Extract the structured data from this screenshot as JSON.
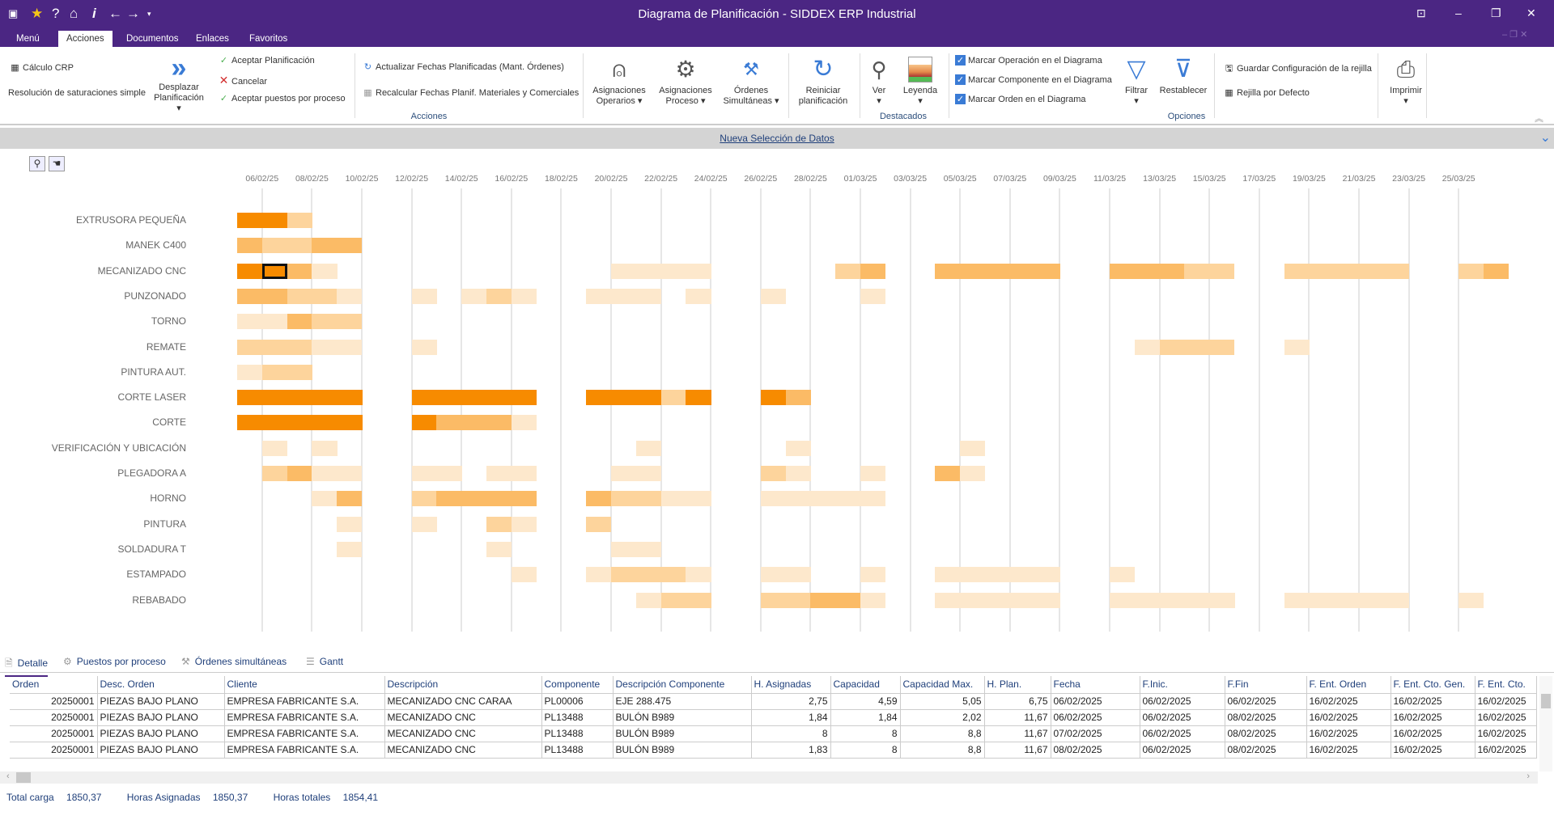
{
  "window": {
    "title": "Diagrama de  Planificación - SIDDEX ERP Industrial"
  },
  "colors": {
    "purple": "#4b2683",
    "level1": "#fde8cc",
    "level2": "#fdd49c",
    "level3": "#fbbb66",
    "level4": "#f78b00"
  },
  "menu_tabs": [
    {
      "label": "Menú"
    },
    {
      "label": "Acciones"
    },
    {
      "label": "Documentos"
    },
    {
      "label": "Enlaces"
    },
    {
      "label": "Favoritos"
    }
  ],
  "ribbon": {
    "calculo_crp": "Cálculo CRP",
    "resolucion": "Resolución de saturaciones simple",
    "desplazar": [
      "Desplazar",
      "Planificación ▾"
    ],
    "aceptar": "Aceptar Planificación",
    "cancelar": "Cancelar",
    "aceptar_puestos": "Aceptar puestos por proceso",
    "actualizar": "Actualizar Fechas Planificadas (Mant. Órdenes)",
    "recalcular": "Recalcular Fechas Planif. Materiales y Comerciales",
    "asig_operarios": [
      "Asignaciones",
      "Operarios ▾"
    ],
    "asig_proceso": [
      "Asignaciones",
      "Proceso ▾"
    ],
    "ordenes_sim": [
      "Órdenes",
      "Simultáneas ▾"
    ],
    "reiniciar": [
      "Reiniciar",
      "planificación"
    ],
    "ver": "Ver",
    "leyenda": "Leyenda",
    "marcar_op": "Marcar Operación en el Diagrama",
    "marcar_comp": "Marcar Componente en el Diagrama",
    "marcar_orden": "Marcar Orden en el Diagrama",
    "filtrar": "Filtrar",
    "restablecer": "Restablecer",
    "guardar": "Guardar Configuración de la rejilla",
    "rejilla": "Rejilla por Defecto",
    "imprimir": "Imprimir",
    "groups": {
      "acciones": "Acciones",
      "destacados": "Destacados",
      "opciones": "Opciones"
    }
  },
  "selection_bar": "Nueva Selección de Datos",
  "gantt": {
    "date_labels": [
      "06/02/25",
      "08/02/25",
      "10/02/25",
      "12/02/25",
      "14/02/25",
      "16/02/25",
      "18/02/25",
      "20/02/25",
      "22/02/25",
      "24/02/25",
      "26/02/25",
      "28/02/25",
      "01/03/25",
      "03/03/25",
      "05/03/25",
      "07/03/25",
      "09/03/25",
      "11/03/25",
      "13/03/25",
      "15/03/25",
      "17/03/25",
      "19/03/25",
      "21/03/25",
      "23/03/25",
      "25/03/25"
    ],
    "rows": [
      {
        "name": "EXTRUSORA PEQUEÑA",
        "segments": [
          [
            0,
            2,
            4
          ],
          [
            2,
            1,
            2
          ]
        ]
      },
      {
        "name": "MANEK C400",
        "segments": [
          [
            0,
            1,
            3
          ],
          [
            1,
            2,
            2
          ],
          [
            3,
            2,
            3
          ]
        ]
      },
      {
        "name": "MECANIZADO CNC",
        "segments": [
          [
            0,
            1,
            4
          ],
          [
            1,
            1,
            4,
            1
          ],
          [
            2,
            1,
            3
          ],
          [
            3,
            1,
            1
          ],
          [
            15,
            4,
            1
          ],
          [
            24,
            1,
            2
          ],
          [
            25,
            1,
            3
          ],
          [
            28,
            5,
            3
          ],
          [
            35,
            3,
            3
          ],
          [
            38,
            2,
            2
          ],
          [
            42,
            5,
            2
          ],
          [
            49,
            1,
            2
          ],
          [
            50,
            1,
            3
          ]
        ]
      },
      {
        "name": "PUNZONADO",
        "segments": [
          [
            0,
            2,
            3
          ],
          [
            2,
            2,
            2
          ],
          [
            4,
            1,
            1
          ],
          [
            7,
            1,
            1
          ],
          [
            9,
            1,
            1
          ],
          [
            10,
            1,
            2
          ],
          [
            11,
            1,
            1
          ],
          [
            14,
            3,
            1
          ],
          [
            18,
            1,
            1
          ],
          [
            21,
            1,
            1
          ],
          [
            25,
            1,
            1
          ]
        ]
      },
      {
        "name": "TORNO",
        "segments": [
          [
            0,
            2,
            1
          ],
          [
            2,
            1,
            3
          ],
          [
            3,
            2,
            2
          ]
        ]
      },
      {
        "name": "REMATE",
        "segments": [
          [
            0,
            3,
            2
          ],
          [
            3,
            2,
            1
          ],
          [
            7,
            1,
            1
          ],
          [
            36,
            1,
            1
          ],
          [
            37,
            3,
            2
          ],
          [
            42,
            1,
            1
          ]
        ]
      },
      {
        "name": "PINTURA AUT.",
        "segments": [
          [
            0,
            1,
            1
          ],
          [
            1,
            2,
            2
          ]
        ]
      },
      {
        "name": "CORTE LASER",
        "segments": [
          [
            0,
            5,
            4
          ],
          [
            7,
            5,
            4
          ],
          [
            14,
            3,
            4
          ],
          [
            17,
            1,
            2
          ],
          [
            18,
            1,
            4
          ],
          [
            21,
            1,
            4
          ],
          [
            22,
            1,
            3
          ]
        ]
      },
      {
        "name": "CORTE",
        "segments": [
          [
            0,
            5,
            4
          ],
          [
            7,
            1,
            4
          ],
          [
            8,
            3,
            3
          ],
          [
            11,
            1,
            1
          ]
        ]
      },
      {
        "name": "VERIFICACIÓN Y UBICACIÓN",
        "segments": [
          [
            1,
            1,
            1
          ],
          [
            3,
            1,
            1
          ],
          [
            16,
            1,
            1
          ],
          [
            22,
            1,
            1
          ],
          [
            29,
            1,
            1
          ]
        ]
      },
      {
        "name": "PLEGADORA  A",
        "segments": [
          [
            1,
            1,
            2
          ],
          [
            2,
            1,
            3
          ],
          [
            3,
            2,
            1
          ],
          [
            7,
            2,
            1
          ],
          [
            10,
            2,
            1
          ],
          [
            15,
            2,
            1
          ],
          [
            21,
            1,
            2
          ],
          [
            22,
            1,
            1
          ],
          [
            25,
            1,
            1
          ],
          [
            28,
            1,
            3
          ],
          [
            29,
            1,
            1
          ]
        ]
      },
      {
        "name": "HORNO",
        "segments": [
          [
            3,
            1,
            1
          ],
          [
            4,
            1,
            3
          ],
          [
            7,
            1,
            2
          ],
          [
            8,
            4,
            3
          ],
          [
            14,
            1,
            3
          ],
          [
            15,
            2,
            2
          ],
          [
            17,
            2,
            1
          ],
          [
            21,
            5,
            1
          ]
        ]
      },
      {
        "name": "PINTURA",
        "segments": [
          [
            4,
            1,
            1
          ],
          [
            7,
            1,
            1
          ],
          [
            10,
            1,
            2
          ],
          [
            11,
            1,
            1
          ],
          [
            14,
            1,
            2
          ]
        ]
      },
      {
        "name": "SOLDADURA T",
        "segments": [
          [
            4,
            1,
            1
          ],
          [
            10,
            1,
            1
          ],
          [
            15,
            2,
            1
          ]
        ]
      },
      {
        "name": "ESTAMPADO",
        "segments": [
          [
            11,
            1,
            1
          ],
          [
            14,
            1,
            1
          ],
          [
            15,
            3,
            2
          ],
          [
            18,
            1,
            1
          ],
          [
            21,
            2,
            1
          ],
          [
            25,
            1,
            1
          ],
          [
            28,
            5,
            1
          ],
          [
            35,
            1,
            1
          ]
        ]
      },
      {
        "name": "REBABADO",
        "segments": [
          [
            16,
            1,
            1
          ],
          [
            17,
            2,
            2
          ],
          [
            21,
            2,
            2
          ],
          [
            23,
            2,
            3
          ],
          [
            25,
            1,
            1
          ],
          [
            28,
            5,
            1
          ],
          [
            35,
            5,
            1
          ],
          [
            42,
            5,
            1
          ],
          [
            49,
            1,
            1
          ]
        ]
      }
    ]
  },
  "bottom_tabs": [
    {
      "label": "Detalle"
    },
    {
      "label": "Puestos por proceso"
    },
    {
      "label": "Órdenes simultáneas"
    },
    {
      "label": "Gantt"
    }
  ],
  "table": {
    "columns": [
      "Orden",
      "Desc. Orden",
      "Cliente",
      "Descripción",
      "Componente",
      "Descripción Componente",
      "H. Asignadas",
      "Capacidad",
      "Capacidad Max.",
      "H. Plan.",
      "Fecha",
      "F.Inic.",
      "F.Fin",
      "F. Ent. Orden",
      "F. Ent. Cto. Gen.",
      "F. Ent. Cto."
    ],
    "rows": [
      [
        "20250001",
        "PIEZAS BAJO PLANO",
        "EMPRESA FABRICANTE S.A.",
        "MECANIZADO CNC CARAA",
        "PL00006",
        "EJE 288.475",
        "2,75",
        "4,59",
        "5,05",
        "6,75",
        "06/02/2025",
        "06/02/2025",
        "06/02/2025",
        "16/02/2025",
        "16/02/2025",
        "16/02/2025"
      ],
      [
        "20250001",
        "PIEZAS BAJO PLANO",
        "EMPRESA FABRICANTE S.A.",
        "MECANIZADO CNC",
        "PL13488",
        "BULÓN B989",
        "1,84",
        "1,84",
        "2,02",
        "11,67",
        "06/02/2025",
        "06/02/2025",
        "08/02/2025",
        "16/02/2025",
        "16/02/2025",
        "16/02/2025"
      ],
      [
        "20250001",
        "PIEZAS BAJO PLANO",
        "EMPRESA FABRICANTE S.A.",
        "MECANIZADO CNC",
        "PL13488",
        "BULÓN B989",
        "8",
        "8",
        "8,8",
        "11,67",
        "07/02/2025",
        "06/02/2025",
        "08/02/2025",
        "16/02/2025",
        "16/02/2025",
        "16/02/2025"
      ],
      [
        "20250001",
        "PIEZAS BAJO PLANO",
        "EMPRESA FABRICANTE S.A.",
        "MECANIZADO CNC",
        "PL13488",
        "BULÓN B989",
        "1,83",
        "8",
        "8,8",
        "11,67",
        "08/02/2025",
        "06/02/2025",
        "08/02/2025",
        "16/02/2025",
        "16/02/2025",
        "16/02/2025"
      ]
    ]
  },
  "totals": {
    "total_carga_label": "Total carga",
    "total_carga": "1850,37",
    "horas_asignadas_label": "Horas Asignadas",
    "horas_asignadas": "1850,37",
    "horas_totales_label": "Horas totales",
    "horas_totales": "1854,41"
  }
}
